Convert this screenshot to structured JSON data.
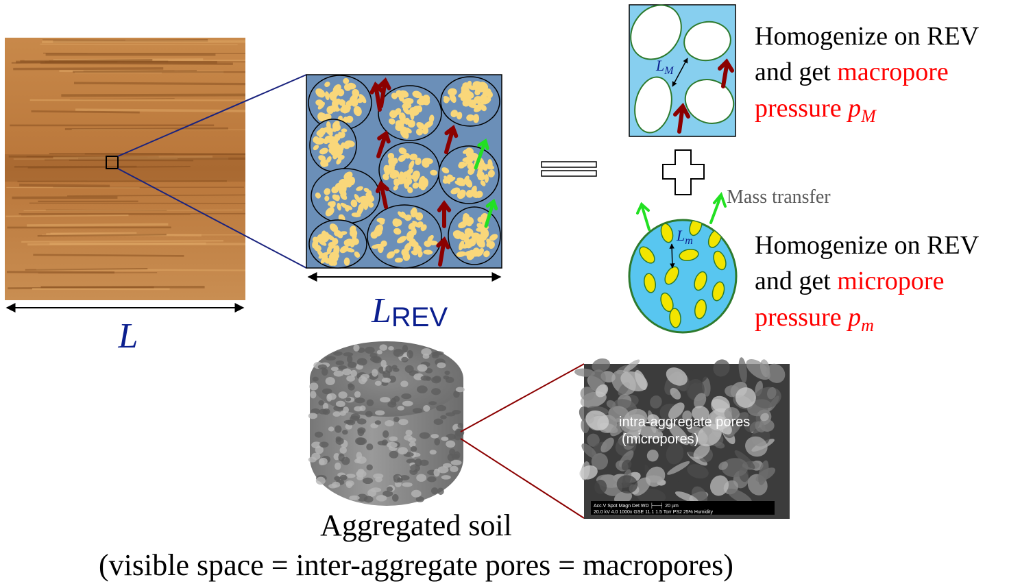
{
  "wood": {
    "length_label": "L"
  },
  "rev": {
    "length_label_main": "L",
    "length_label_sub": "REV"
  },
  "macro": {
    "length_label_main": "L",
    "length_label_sub": "M",
    "line1": "Homogenize on REV",
    "line2_prefix": "and get ",
    "line2_highlight": "macropore",
    "line3_word": "pressure ",
    "line3_symbol": "p",
    "line3_sub": "M"
  },
  "micro": {
    "length_label_main": "L",
    "length_label_sub": "m",
    "mass_transfer": "Mass transfer",
    "line1": "Homogenize on REV",
    "line2_prefix": "and get ",
    "line2_highlight": "micropore",
    "line3_word": "pressure ",
    "line3_symbol": "p",
    "line3_sub": "m"
  },
  "sem": {
    "label_line1": "intra-aggregate pores",
    "label_line2": "(micropores)",
    "scale_line1": "Acc.V  Spot Magn   Det  WD ├──┤ 20 µm",
    "scale_line2": "20.0 kV 4.0  1000x  GSE 11.1  1.5 Torr PS2 25% Humidity"
  },
  "soil": {
    "caption_line1": "Aggregated soil",
    "caption_line2": "(visible space = inter-aggregate pores = macropores)"
  },
  "colors": {
    "navy": "#0b1f8f",
    "red": "#ff0000",
    "dark_red_arrow": "#8b0000",
    "green_arrow": "#22e022",
    "macro_blue": "#87cfef",
    "rev_blue": "#6b8fb8",
    "aggregate_yellow": "#f9d77a",
    "micro_yellow": "#f2e500",
    "green_outline": "#2d7a2d"
  }
}
